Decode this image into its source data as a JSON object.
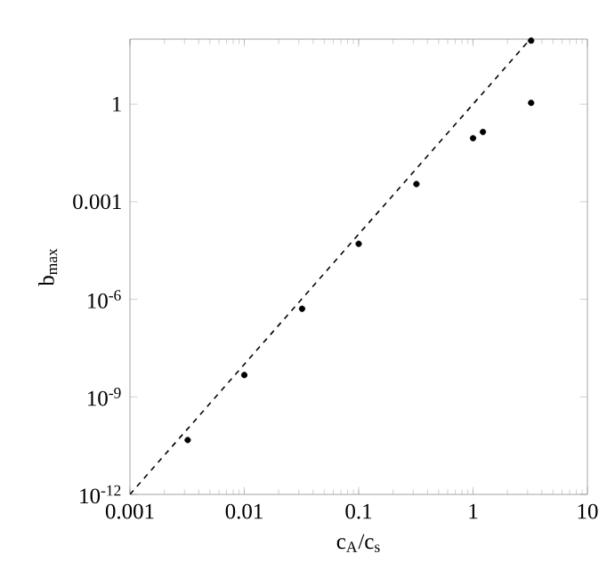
{
  "chart_data": {
    "type": "scatter",
    "xlabel": "c$_{A}$/c$_{s}$",
    "ylabel": "b$_{max}$",
    "log": "xy",
    "xlim": [
      0.001,
      10
    ],
    "ylim": [
      1e-12,
      100
    ],
    "xticks": [
      0.001,
      0.01,
      0.1,
      1,
      10
    ],
    "yticks": [
      {
        "value": 1e-12,
        "label": "10$^{-12}$"
      },
      {
        "value": 1e-09,
        "label": "10$^{-9}$"
      },
      {
        "value": 1e-06,
        "label": "10$^{-6}$"
      },
      0.001,
      1
    ],
    "series": [
      {
        "color": "#000000",
        "x": [
          0.0032,
          0.01,
          0.032,
          0.1,
          0.32,
          1.0,
          1.22,
          3.22,
          3.22
        ],
        "values": [
          4.7e-11,
          4.7e-09,
          5.1e-07,
          5.1e-05,
          0.0035,
          0.09,
          0.14,
          1.1,
          90
        ]
      },
      {
        "type": "line",
        "marker": "none",
        "line_style": "dashed",
        "color": "#000000",
        "x": [
          0.001,
          3.162
        ],
        "values": [
          1e-12,
          100
        ]
      }
    ]
  }
}
